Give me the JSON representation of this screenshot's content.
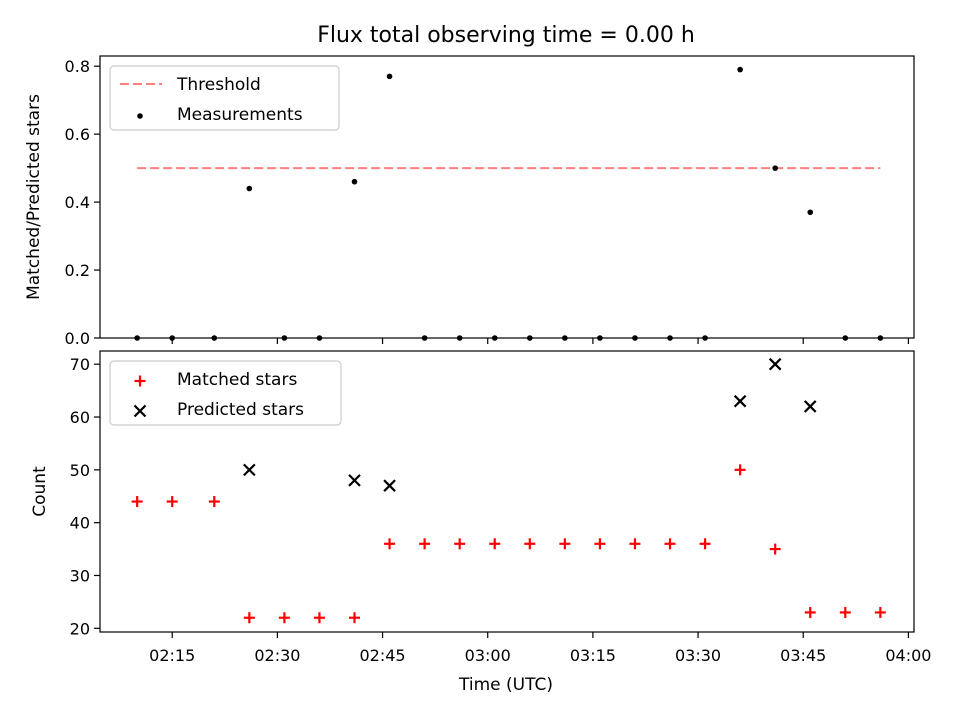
{
  "chart_data": {
    "title": "Flux total observing time = 0.00 h",
    "xlabel": "Time (UTC)",
    "x_ticks": [
      "02:15",
      "02:30",
      "02:45",
      "03:00",
      "03:15",
      "03:30",
      "03:45",
      "04:00"
    ],
    "panels": [
      {
        "type": "scatter",
        "ylabel": "Matched/Predicted stars",
        "ylim": [
          0,
          0.83
        ],
        "y_ticks": [
          "0.0",
          "0.2",
          "0.4",
          "0.6",
          "0.8"
        ],
        "legend": {
          "placement": "top-left",
          "entries": [
            "Threshold",
            "Measurements"
          ]
        },
        "threshold": {
          "name": "Threshold",
          "value": 0.5,
          "x_range": [
            "02:10",
            "03:56"
          ],
          "color": "#ff7f7f",
          "style": "dashed"
        },
        "series": [
          {
            "name": "Measurements",
            "marker": "point",
            "color": "#000000",
            "x": [
              "02:10",
              "02:15",
              "02:21",
              "02:26",
              "02:31",
              "02:36",
              "02:41",
              "02:46",
              "02:51",
              "02:56",
              "03:01",
              "03:06",
              "03:11",
              "03:16",
              "03:21",
              "03:26",
              "03:31",
              "03:36",
              "03:41",
              "03:46",
              "03:51",
              "03:56"
            ],
            "y": [
              0,
              0,
              0,
              0.44,
              0,
              0,
              0.46,
              0.77,
              0,
              0,
              0,
              0,
              0,
              0,
              0,
              0,
              0,
              0.79,
              0.5,
              0.37,
              0,
              0
            ]
          }
        ]
      },
      {
        "type": "scatter",
        "ylabel": "Count",
        "ylim": [
          19.3,
          72.5
        ],
        "y_ticks": [
          "20",
          "30",
          "40",
          "50",
          "60",
          "70"
        ],
        "legend": {
          "placement": "top-left",
          "entries": [
            "Matched stars",
            "Predicted stars"
          ]
        },
        "series": [
          {
            "name": "Matched stars",
            "marker": "plus",
            "color": "#ff0000",
            "x": [
              "02:10",
              "02:15",
              "02:21",
              "02:26",
              "02:31",
              "02:36",
              "02:41",
              "02:46",
              "02:51",
              "02:56",
              "03:01",
              "03:06",
              "03:11",
              "03:16",
              "03:21",
              "03:26",
              "03:31",
              "03:36",
              "03:41",
              "03:46",
              "03:51",
              "03:56"
            ],
            "y": [
              44,
              44,
              44,
              22,
              22,
              22,
              22,
              36,
              36,
              36,
              36,
              36,
              36,
              36,
              36,
              36,
              36,
              50,
              35,
              23,
              23,
              23
            ]
          },
          {
            "name": "Predicted stars",
            "marker": "x",
            "color": "#000000",
            "x": [
              "02:26",
              "02:41",
              "02:46",
              "03:36",
              "03:41",
              "03:46"
            ],
            "y": [
              50,
              48,
              47,
              63,
              70,
              62
            ]
          }
        ]
      }
    ]
  }
}
